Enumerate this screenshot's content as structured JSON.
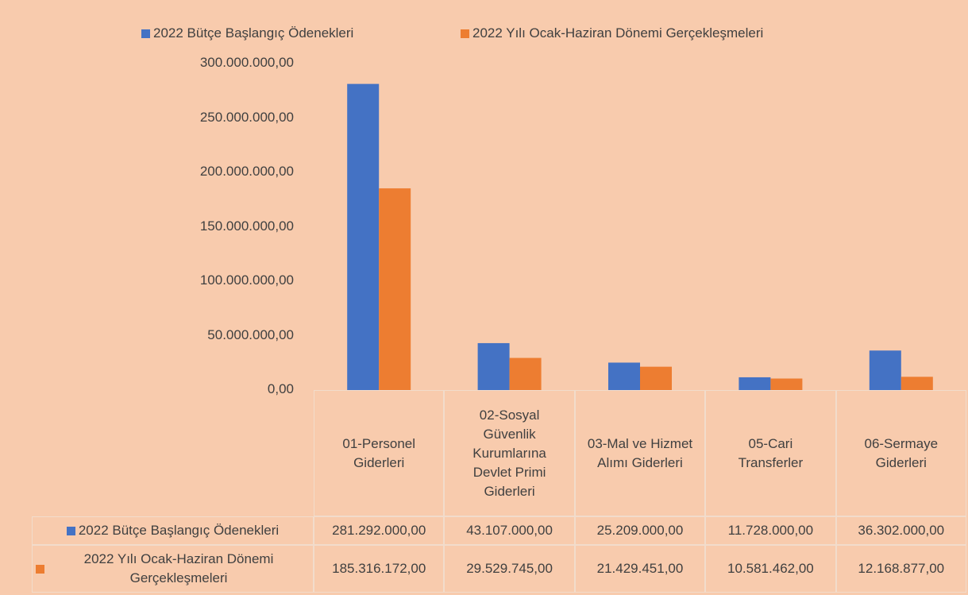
{
  "chart_data": {
    "type": "bar",
    "categories": [
      "01-Personel Giderleri",
      "02-Sosyal Güvenlik Kurumlarına Devlet Primi Giderleri",
      "03-Mal ve Hizmet Alımı Giderleri",
      "05-Cari Transferler",
      "06-Sermaye Giderleri"
    ],
    "series": [
      {
        "name": "2022 Bütçe Başlangıç Ödenekleri",
        "color": "#4472c4",
        "values": [
          281292000,
          43107000,
          25209000,
          11728000,
          36302000
        ],
        "value_labels": [
          "281.292.000,00",
          "43.107.000,00",
          "25.209.000,00",
          "11.728.000,00",
          "36.302.000,00"
        ]
      },
      {
        "name": "2022 Yılı Ocak-Haziran Dönemi Gerçekleşmeleri",
        "color": "#ed7d31",
        "values": [
          185316172,
          29529745,
          21429451,
          10581462,
          12168877
        ],
        "value_labels": [
          "185.316.172,00",
          "29.529.745,00",
          "21.429.451,00",
          "10.581.462,00",
          "12.168.877,00"
        ]
      }
    ],
    "ylim": [
      0,
      300000000
    ],
    "yticks": [
      {
        "value": 0,
        "label": "0,00"
      },
      {
        "value": 50000000,
        "label": "50.000.000,00"
      },
      {
        "value": 100000000,
        "label": "100.000.000,00"
      },
      {
        "value": 150000000,
        "label": "150.000.000,00"
      },
      {
        "value": 200000000,
        "label": "200.000.000,00"
      },
      {
        "value": 250000000,
        "label": "250.000.000,00"
      },
      {
        "value": 300000000,
        "label": "300.000.000,00"
      }
    ],
    "grid": false,
    "legend": "top"
  }
}
